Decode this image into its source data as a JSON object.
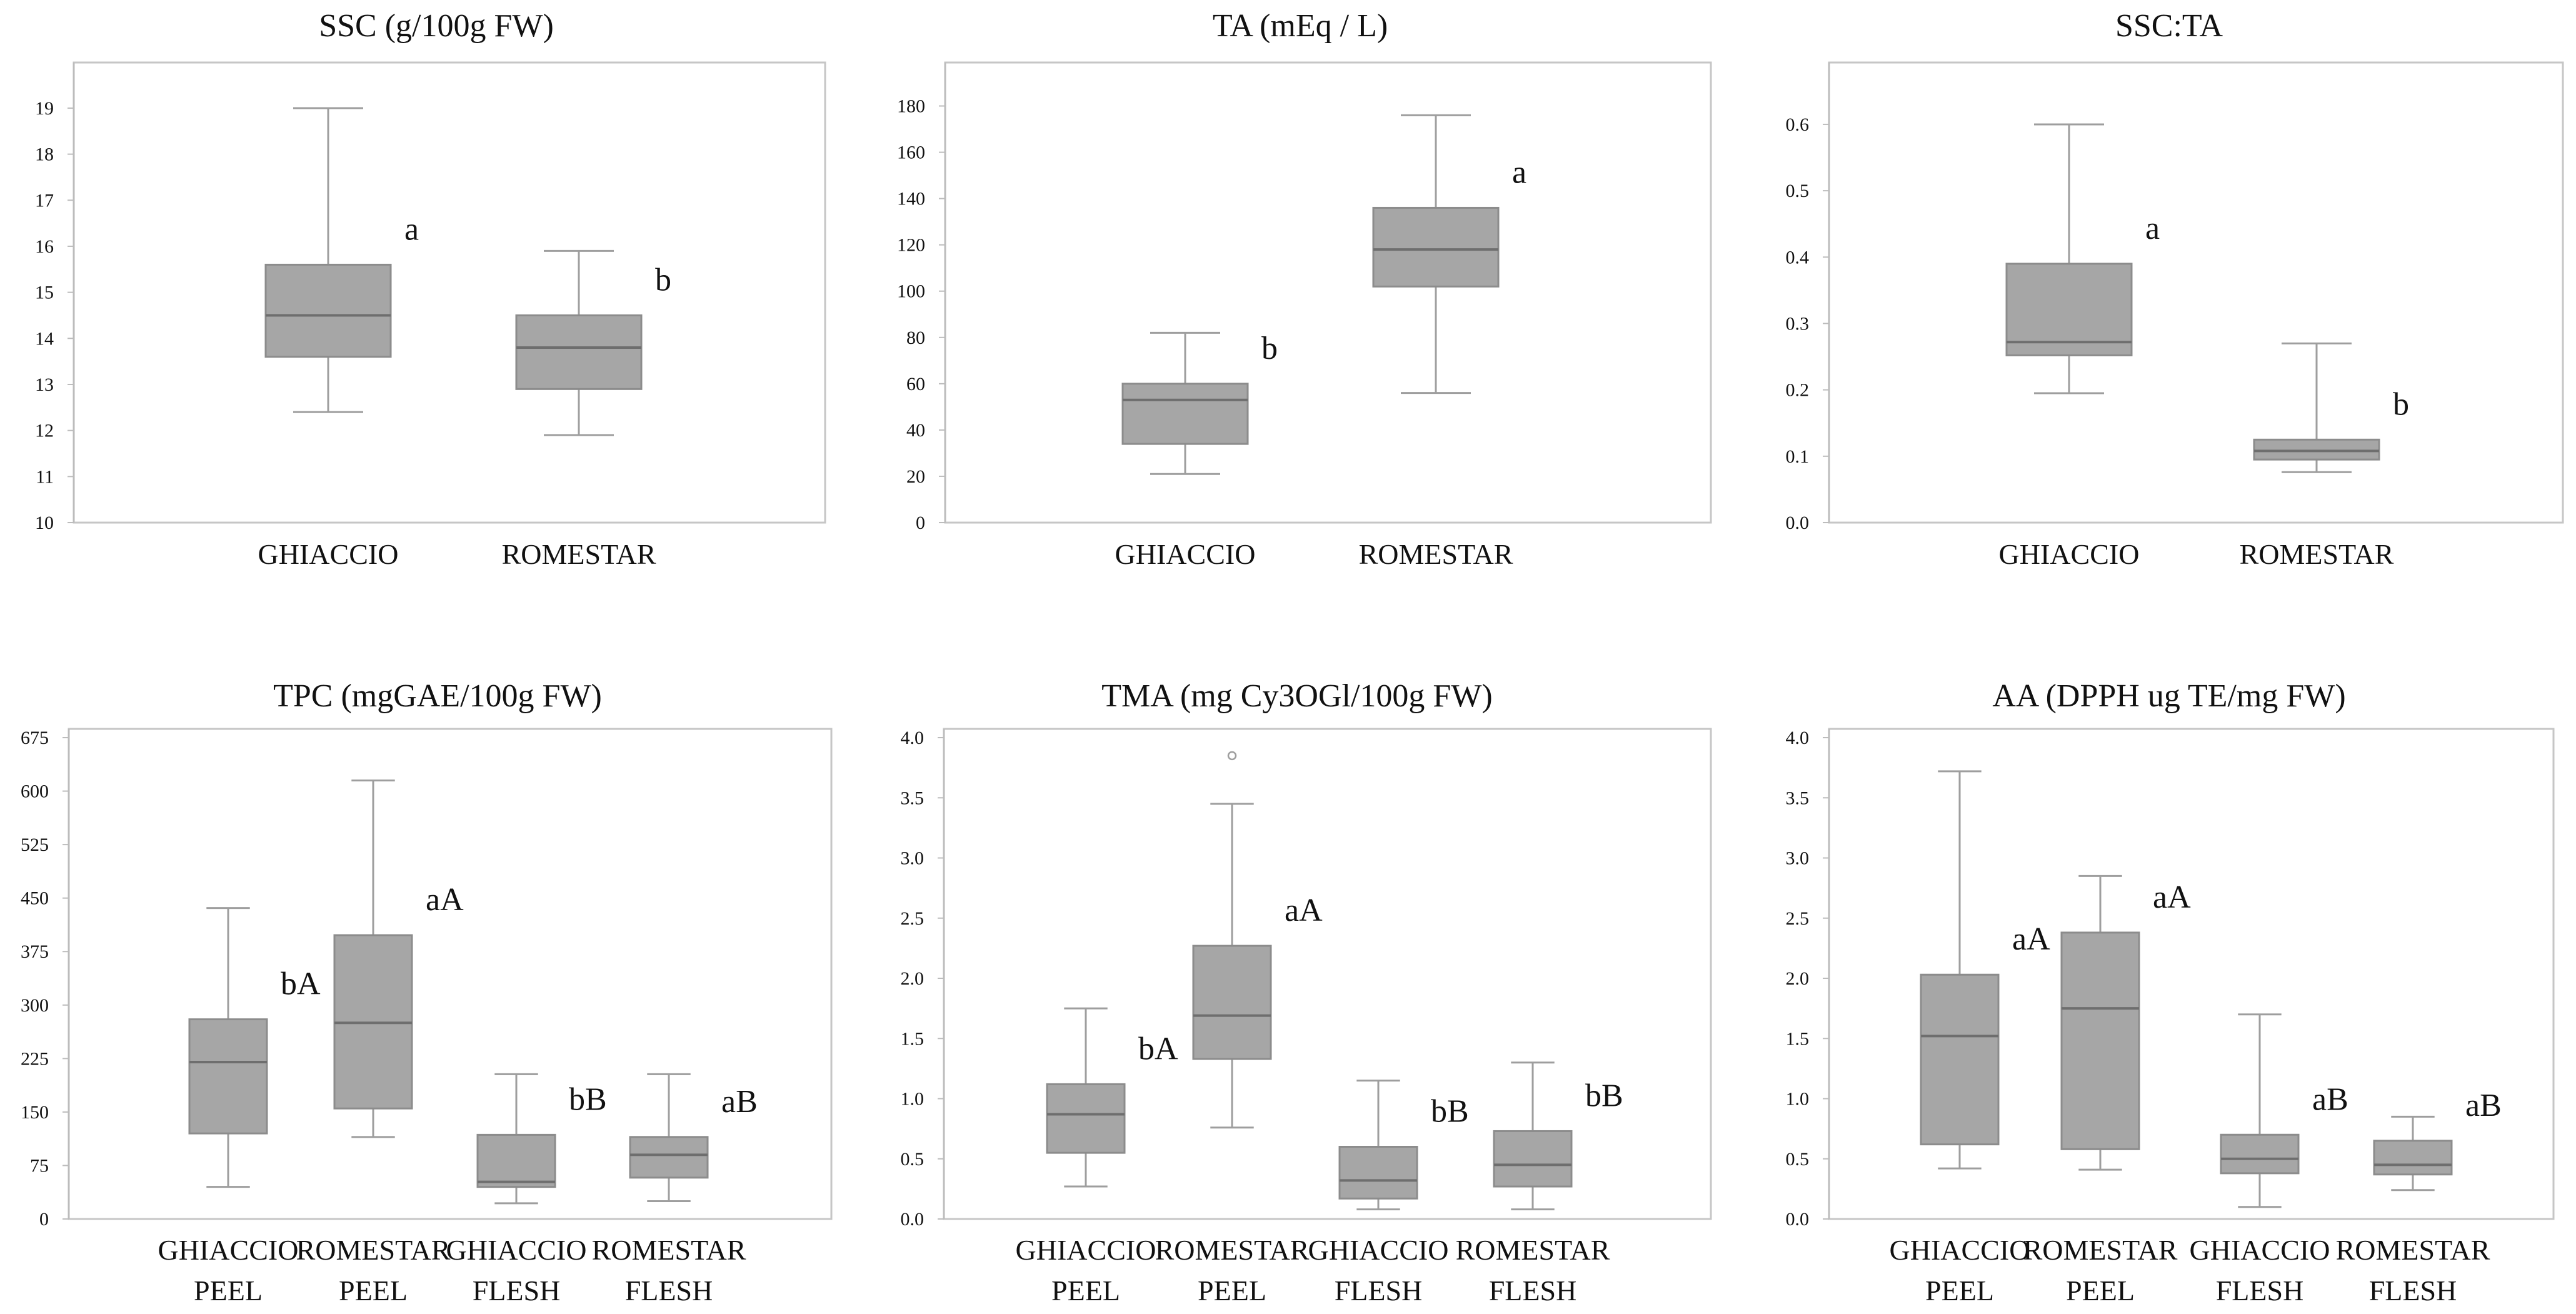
{
  "colors": {
    "box_fill": "#a6a6a6",
    "box_stroke": "#8c8c8c",
    "whisker": "#9e9e9e",
    "median": "#6e6e6e",
    "frame": "#c6c6c6",
    "axis": "#bcbcbc",
    "text": "#111111"
  },
  "chart_data": [
    {
      "type": "box",
      "title": "SSC (g/100g FW)",
      "ylim": [
        10,
        19.8
      ],
      "yticks": [
        "10",
        "11",
        "12",
        "13",
        "14",
        "15",
        "16",
        "17",
        "18",
        "19"
      ],
      "groups": [
        {
          "label_lines": [
            "GHIACCIO"
          ],
          "min": 12.4,
          "q1": 13.6,
          "median": 14.5,
          "q3": 15.6,
          "max": 19.0,
          "sig": "a",
          "outliers": []
        },
        {
          "label_lines": [
            "ROMESTAR"
          ],
          "min": 11.9,
          "q1": 12.9,
          "median": 13.8,
          "q3": 14.5,
          "max": 15.9,
          "sig": "b",
          "outliers": []
        }
      ]
    },
    {
      "type": "box",
      "title": "TA (mEq / L)",
      "ylim": [
        0,
        195
      ],
      "yticks": [
        "0",
        "20",
        "40",
        "60",
        "80",
        "100",
        "120",
        "140",
        "160",
        "180"
      ],
      "groups": [
        {
          "label_lines": [
            "GHIACCIO"
          ],
          "min": 21,
          "q1": 34,
          "median": 53,
          "q3": 60,
          "max": 82,
          "sig": "b",
          "outliers": []
        },
        {
          "label_lines": [
            "ROMESTAR"
          ],
          "min": 56,
          "q1": 102,
          "median": 118,
          "q3": 136,
          "max": 176,
          "sig": "a",
          "outliers": []
        }
      ]
    },
    {
      "type": "box",
      "title": "SSC:TA",
      "ylim": [
        0,
        0.68
      ],
      "yticks": [
        "0.0",
        "0.1",
        "0.2",
        "0.3",
        "0.4",
        "0.5",
        "0.6"
      ],
      "groups": [
        {
          "label_lines": [
            "GHIACCIO"
          ],
          "min": 0.195,
          "q1": 0.252,
          "median": 0.272,
          "q3": 0.39,
          "max": 0.6,
          "sig": "a",
          "outliers": []
        },
        {
          "label_lines": [
            "ROMESTAR"
          ],
          "min": 0.076,
          "q1": 0.095,
          "median": 0.108,
          "q3": 0.125,
          "max": 0.27,
          "sig": "b",
          "outliers": []
        }
      ]
    },
    {
      "type": "box",
      "title": "TPC (mgGAE/100g FW)",
      "ylim": [
        0,
        675
      ],
      "yticks": [
        "0",
        "75",
        "150",
        "225",
        "300",
        "375",
        "450",
        "525",
        "600",
        "675"
      ],
      "groups": [
        {
          "label_lines": [
            "GHIACCIO",
            "PEEL"
          ],
          "min": 45,
          "q1": 120,
          "median": 220,
          "q3": 280,
          "max": 436,
          "sig": "bA",
          "outliers": []
        },
        {
          "label_lines": [
            "ROMESTAR",
            "PEEL"
          ],
          "min": 115,
          "q1": 155,
          "median": 275,
          "q3": 398,
          "max": 615,
          "sig": "aA",
          "outliers": []
        },
        {
          "label_lines": [
            "GHIACCIO",
            "FLESH"
          ],
          "min": 22,
          "q1": 45,
          "median": 52,
          "q3": 118,
          "max": 203,
          "sig": "bB",
          "outliers": []
        },
        {
          "label_lines": [
            "ROMESTAR",
            "FLESH"
          ],
          "min": 25,
          "q1": 58,
          "median": 90,
          "q3": 115,
          "max": 203,
          "sig": "aB",
          "outliers": []
        }
      ]
    },
    {
      "type": "box",
      "title": "TMA (mg Cy3OGl/100g FW)",
      "ylim": [
        0,
        4.0
      ],
      "yticks": [
        "0.0",
        "0.5",
        "1.0",
        "1.5",
        "2.0",
        "2.5",
        "3.0",
        "3.5",
        "4.0"
      ],
      "groups": [
        {
          "label_lines": [
            "GHIACCIO",
            "PEEL"
          ],
          "min": 0.27,
          "q1": 0.55,
          "median": 0.87,
          "q3": 1.12,
          "max": 1.75,
          "sig": "bA",
          "outliers": []
        },
        {
          "label_lines": [
            "ROMESTAR",
            "PEEL"
          ],
          "min": 0.76,
          "q1": 1.33,
          "median": 1.69,
          "q3": 2.27,
          "max": 3.45,
          "sig": "aA",
          "outliers": [
            3.85
          ]
        },
        {
          "label_lines": [
            "GHIACCIO",
            "FLESH"
          ],
          "min": 0.08,
          "q1": 0.17,
          "median": 0.32,
          "q3": 0.6,
          "max": 1.15,
          "sig": "bB",
          "outliers": []
        },
        {
          "label_lines": [
            "ROMESTAR",
            "FLESH"
          ],
          "min": 0.08,
          "q1": 0.27,
          "median": 0.45,
          "q3": 0.73,
          "max": 1.3,
          "sig": "bB",
          "outliers": []
        }
      ]
    },
    {
      "type": "box",
      "title": "AA (DPPH ug TE/mg FW)",
      "ylim": [
        0,
        4.0
      ],
      "yticks": [
        "0.0",
        "0.5",
        "1.0",
        "1.5",
        "2.0",
        "2.5",
        "3.0",
        "3.5",
        "4.0"
      ],
      "groups": [
        {
          "label_lines": [
            "GHIACCIO",
            "PEEL"
          ],
          "min": 0.42,
          "q1": 0.62,
          "median": 1.52,
          "q3": 2.03,
          "max": 3.72,
          "sig": "aA",
          "outliers": []
        },
        {
          "label_lines": [
            "ROMESTAR",
            "PEEL"
          ],
          "min": 0.41,
          "q1": 0.58,
          "median": 1.75,
          "q3": 2.38,
          "max": 2.85,
          "sig": "aA",
          "outliers": []
        },
        {
          "label_lines": [
            "GHIACCIO",
            "FLESH"
          ],
          "min": 0.1,
          "q1": 0.38,
          "median": 0.5,
          "q3": 0.7,
          "max": 1.7,
          "sig": "aB",
          "outliers": []
        },
        {
          "label_lines": [
            "ROMESTAR",
            "FLESH"
          ],
          "min": 0.24,
          "q1": 0.37,
          "median": 0.45,
          "q3": 0.65,
          "max": 0.85,
          "sig": "aB",
          "outliers": []
        }
      ]
    }
  ]
}
